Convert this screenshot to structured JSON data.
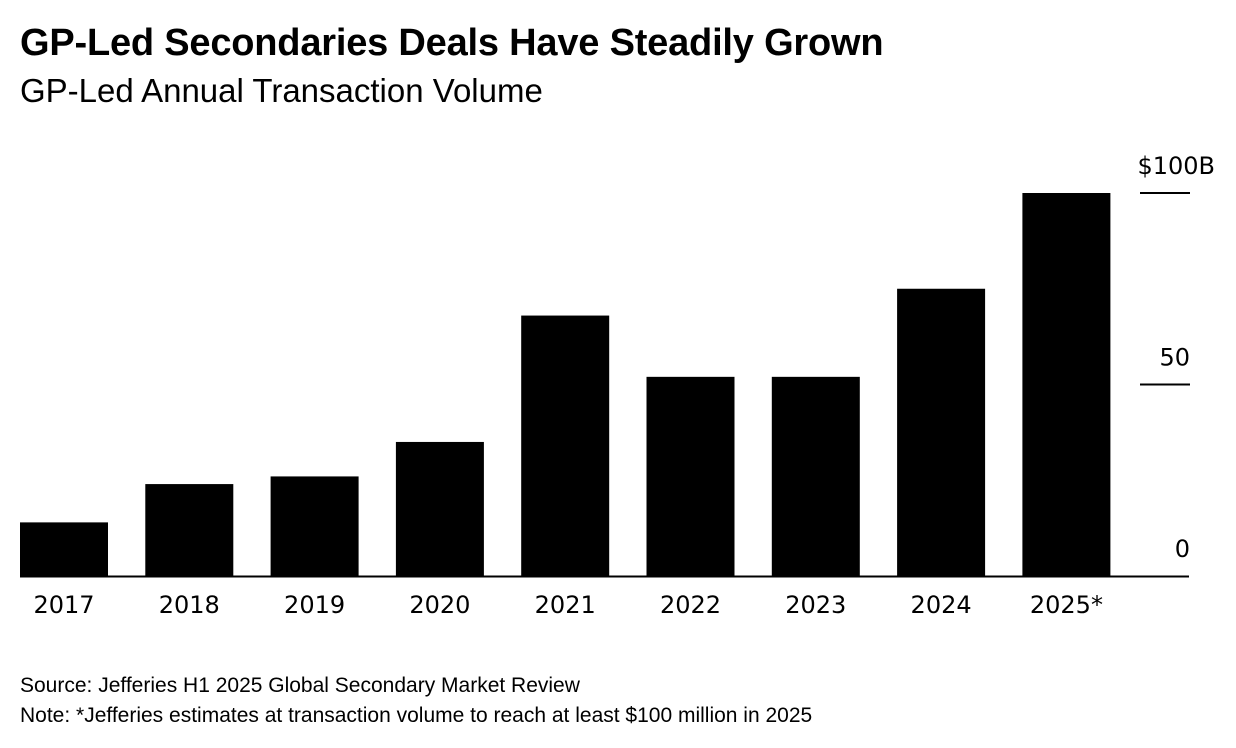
{
  "title": "GP-Led Secondaries Deals Have Steadily Grown",
  "subtitle": "GP-Led Annual Transaction Volume",
  "source": "Source: Jefferies H1 2025 Global Secondary Market Review",
  "note": "Note: *Jefferies estimates at transaction volume to reach at least $100 million in 2025",
  "colors": {
    "bar": "#000000",
    "text": "#000000",
    "background": "#ffffff"
  },
  "chart_data": {
    "type": "bar",
    "title": "GP-Led Secondaries Deals Have Steadily Grown",
    "subtitle": "GP-Led Annual Transaction Volume",
    "xlabel": "",
    "ylabel": "",
    "categories": [
      "2017",
      "2018",
      "2019",
      "2020",
      "2021",
      "2022",
      "2023",
      "2024",
      "2025*"
    ],
    "values": [
      14,
      24,
      26,
      35,
      68,
      52,
      52,
      75,
      100
    ],
    "unit": "$B",
    "ylim": [
      0,
      100
    ],
    "yticks": [
      0,
      50,
      100
    ],
    "ytick_labels": [
      "0",
      "50",
      "$100B"
    ],
    "y_axis_position": "right",
    "grid": false,
    "legend": "none"
  }
}
